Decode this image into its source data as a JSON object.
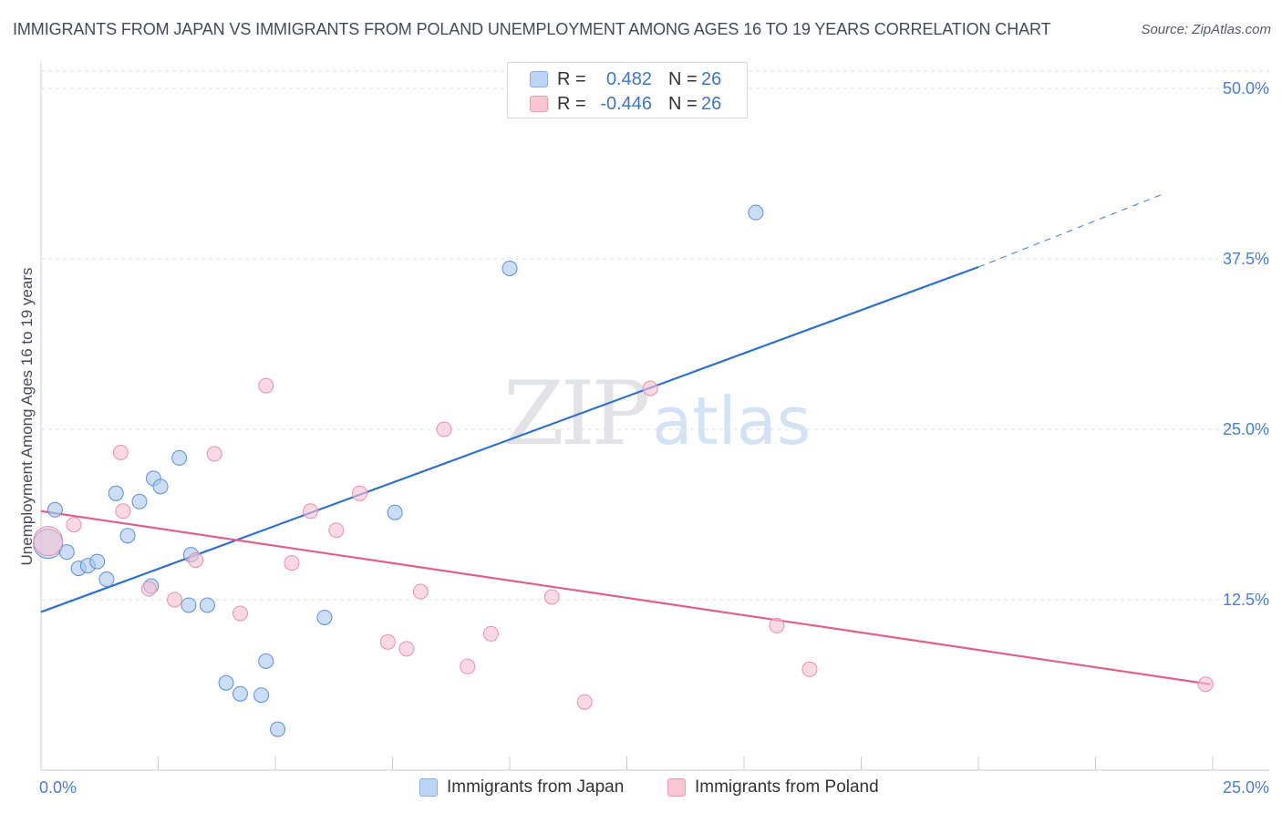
{
  "title": "IMMIGRANTS FROM JAPAN VS IMMIGRANTS FROM POLAND UNEMPLOYMENT AMONG AGES 16 TO 19 YEARS CORRELATION CHART",
  "source": "Source: ZipAtlas.com",
  "watermark": {
    "zip": "ZIP",
    "atlas": "atlas"
  },
  "legend": {
    "rows": [
      {
        "r_label": "R =",
        "r_value": "0.482",
        "n_label": "N =",
        "n_value": "26",
        "color": "#bcd4f5",
        "border": "#88aee6"
      },
      {
        "r_label": "R =",
        "r_value": "-0.446",
        "n_label": "N =",
        "n_value": "26",
        "color": "#fbc6d4",
        "border": "#ef99b3"
      }
    ]
  },
  "bottom_legend": {
    "japan": "Immigrants from Japan",
    "poland": "Immigrants from Poland"
  },
  "chart_data": {
    "type": "scatter",
    "title": "IMMIGRANTS FROM JAPAN VS IMMIGRANTS FROM POLAND UNEMPLOYMENT AMONG AGES 16 TO 19 YEARS CORRELATION CHART",
    "xlabel": "",
    "ylabel": "Unemployment Among Ages 16 to 19 years",
    "xlim": [
      0,
      25
    ],
    "ylim": [
      0,
      50
    ],
    "x_tick_labels": [
      "0.0%",
      "25.0%"
    ],
    "y_tick_labels": [
      "12.5%",
      "25.0%",
      "37.5%",
      "50.0%"
    ],
    "y_ticks": [
      12.5,
      25.0,
      37.5,
      50.0
    ],
    "x_minor_ticks": [
      2.5,
      5.0,
      7.5,
      10.0,
      12.5,
      15.0,
      17.5,
      20.0,
      22.5,
      25.0
    ],
    "series": [
      {
        "name": "Immigrants from Japan",
        "color": "#a9c8f0",
        "stroke": "#5b8fd6",
        "line_color": "#2f6fd0",
        "trend": {
          "x0": 0,
          "y0": 11.6,
          "x1": 20.0,
          "y1": 36.9,
          "dash_x1": 23.9,
          "dash_y1": 42.2
        },
        "points": [
          {
            "x": 0.15,
            "y": 16.6,
            "big": true
          },
          {
            "x": 0.3,
            "y": 19.1
          },
          {
            "x": 0.55,
            "y": 16.0
          },
          {
            "x": 0.8,
            "y": 14.8
          },
          {
            "x": 1.0,
            "y": 15.0
          },
          {
            "x": 1.2,
            "y": 15.3
          },
          {
            "x": 1.4,
            "y": 14.0
          },
          {
            "x": 1.6,
            "y": 20.3
          },
          {
            "x": 1.85,
            "y": 17.2
          },
          {
            "x": 2.1,
            "y": 19.7
          },
          {
            "x": 2.35,
            "y": 13.5
          },
          {
            "x": 2.4,
            "y": 21.4
          },
          {
            "x": 2.55,
            "y": 20.8
          },
          {
            "x": 2.95,
            "y": 22.9
          },
          {
            "x": 3.2,
            "y": 15.8
          },
          {
            "x": 3.15,
            "y": 12.1
          },
          {
            "x": 3.55,
            "y": 12.1
          },
          {
            "x": 3.95,
            "y": 6.4
          },
          {
            "x": 4.25,
            "y": 5.6
          },
          {
            "x": 4.7,
            "y": 5.5
          },
          {
            "x": 4.8,
            "y": 8.0
          },
          {
            "x": 5.05,
            "y": 3.0
          },
          {
            "x": 6.05,
            "y": 11.2
          },
          {
            "x": 7.55,
            "y": 18.9
          },
          {
            "x": 10.0,
            "y": 36.8
          },
          {
            "x": 15.25,
            "y": 40.9
          }
        ]
      },
      {
        "name": "Immigrants from Poland",
        "color": "#f7bfd0",
        "stroke": "#ea8fac",
        "line_color": "#e0608c",
        "trend": {
          "x0": 0,
          "y0": 19.0,
          "x1": 24.95,
          "y1": 6.3
        },
        "points": [
          {
            "x": 0.15,
            "y": 16.8,
            "big": true
          },
          {
            "x": 0.7,
            "y": 18.0
          },
          {
            "x": 1.7,
            "y": 23.3
          },
          {
            "x": 1.75,
            "y": 19.0
          },
          {
            "x": 2.3,
            "y": 13.3
          },
          {
            "x": 2.85,
            "y": 12.5
          },
          {
            "x": 3.3,
            "y": 15.4
          },
          {
            "x": 3.7,
            "y": 23.2
          },
          {
            "x": 4.25,
            "y": 11.5
          },
          {
            "x": 4.8,
            "y": 28.2
          },
          {
            "x": 5.35,
            "y": 15.2
          },
          {
            "x": 5.75,
            "y": 19.0
          },
          {
            "x": 6.3,
            "y": 17.6
          },
          {
            "x": 6.8,
            "y": 20.3
          },
          {
            "x": 7.4,
            "y": 9.4
          },
          {
            "x": 7.8,
            "y": 8.9
          },
          {
            "x": 8.1,
            "y": 13.1
          },
          {
            "x": 8.6,
            "y": 25.0
          },
          {
            "x": 9.1,
            "y": 7.6
          },
          {
            "x": 9.6,
            "y": 10.0
          },
          {
            "x": 10.9,
            "y": 12.7
          },
          {
            "x": 11.6,
            "y": 5.0
          },
          {
            "x": 13.0,
            "y": 28.0
          },
          {
            "x": 15.7,
            "y": 10.6
          },
          {
            "x": 16.4,
            "y": 7.4
          },
          {
            "x": 24.85,
            "y": 6.3
          }
        ]
      }
    ]
  }
}
